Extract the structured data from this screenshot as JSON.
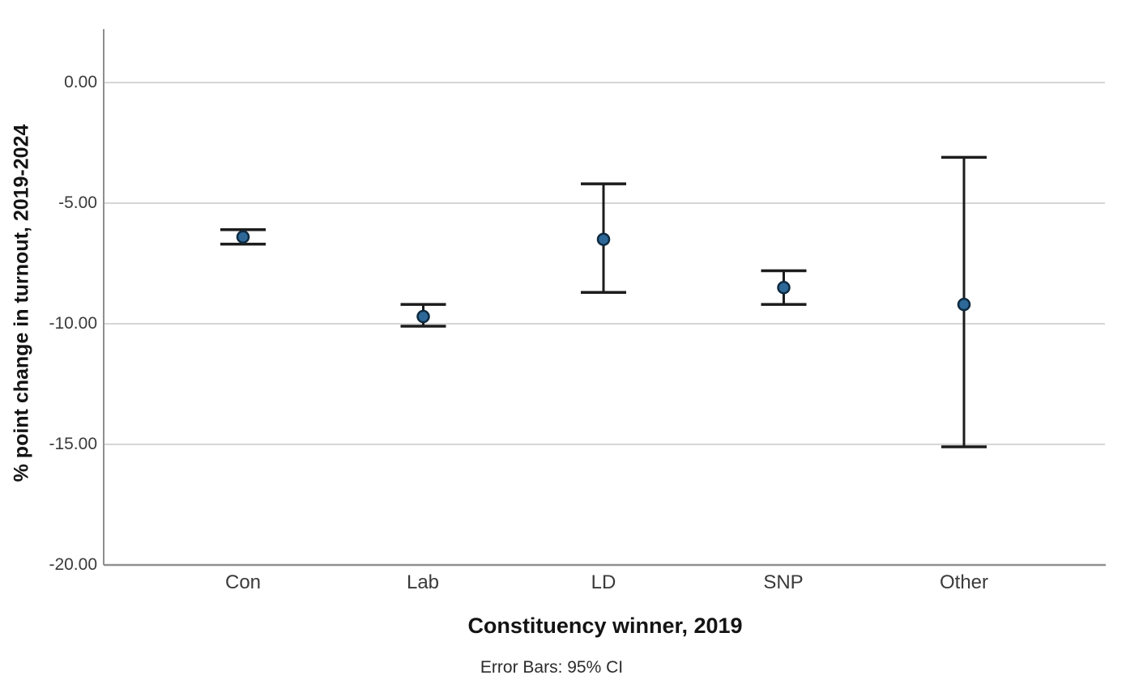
{
  "chart_data": {
    "type": "scatter",
    "subtype": "error-bar-plot",
    "source_style": "SPSS error bar chart",
    "categories": [
      "Con",
      "Lab",
      "LD",
      "SNP",
      "Other"
    ],
    "series": [
      {
        "name": "Mean % point change in turnout, 2019-2024",
        "means": [
          -6.4,
          -9.7,
          -6.5,
          -8.5,
          -9.2
        ],
        "ci_upper": [
          -6.1,
          -9.2,
          -4.2,
          -7.8,
          -3.1
        ],
        "ci_lower": [
          -6.7,
          -10.1,
          -8.7,
          -9.2,
          -15.1
        ]
      }
    ],
    "error_bars": "95% CI",
    "title": "",
    "xlabel": "Constituency winner, 2019",
    "ylabel": "% point change in turnout, 2019-2024",
    "footnote": "Error Bars: 95% CI",
    "ytick_labels": [
      "0.00",
      "-5.00",
      "-10.00",
      "-15.00",
      "-20.00"
    ],
    "ytick_values": [
      0,
      -5,
      -10,
      -15,
      -20
    ],
    "ylim": [
      -20,
      2.2
    ],
    "grid": "horizontal gridlines at y ticks",
    "legend": "none",
    "colors": {
      "marker_fill": "#2d6898",
      "marker_stroke": "#0e2a40",
      "error_bar": "#1c1c1c",
      "gridline": "#c9c9c9",
      "axis_line": "#8f8f8f",
      "tick_text": "#3a3a3a",
      "title_text": "#141414",
      "background": "#ffffff"
    }
  }
}
